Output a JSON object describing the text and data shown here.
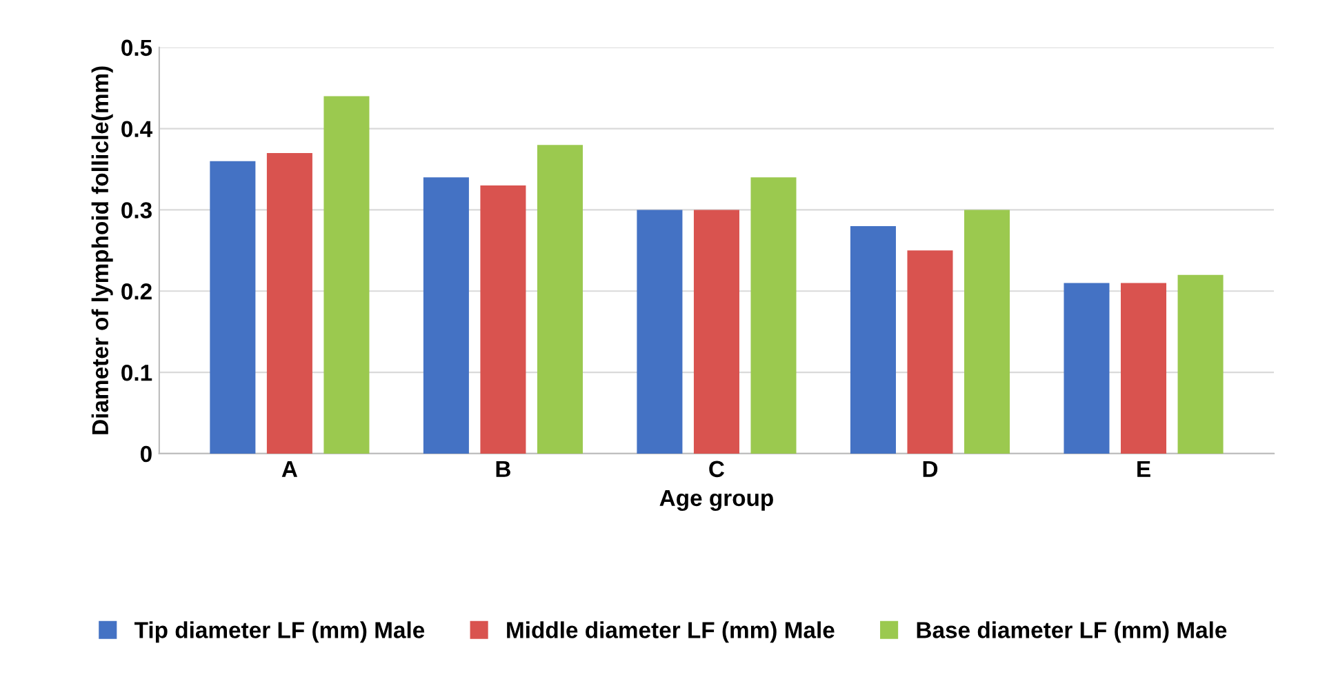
{
  "chart_data": {
    "type": "bar",
    "xlabel": "Age group",
    "ylabel": "Diameter of lymphoid follicle(mm)",
    "categories": [
      "A",
      "B",
      "C",
      "D",
      "E"
    ],
    "series": [
      {
        "name": "Tip diameter LF (mm) Male",
        "color": "#4472c4",
        "values": [
          0.36,
          0.34,
          0.3,
          0.28,
          0.21
        ]
      },
      {
        "name": "Middle diameter LF (mm) Male",
        "color": "#d9534f",
        "values": [
          0.37,
          0.33,
          0.3,
          0.25,
          0.21
        ]
      },
      {
        "name": "Base diameter LF (mm) Male",
        "color": "#9bc94f",
        "values": [
          0.44,
          0.38,
          0.34,
          0.3,
          0.22
        ]
      }
    ],
    "ylim": [
      0,
      0.5
    ],
    "yticks": [
      0,
      0.1,
      0.2,
      0.3,
      0.4,
      0.5
    ],
    "grid": "y",
    "legend": "bottom"
  }
}
